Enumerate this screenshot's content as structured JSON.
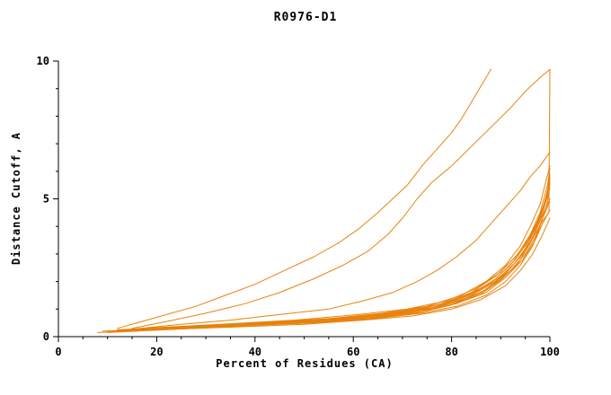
{
  "chart_data": {
    "type": "line",
    "title": "R0976-D1",
    "xlabel": "Percent of Residues (CA)",
    "ylabel": "Distance Cutoff, A",
    "xlim": [
      0,
      100
    ],
    "ylim": [
      0,
      10
    ],
    "x_major_ticks": [
      0,
      20,
      40,
      60,
      80,
      100
    ],
    "x_minor_step": 5,
    "y_major_ticks": [
      0,
      5,
      10
    ],
    "y_minor_step": 1,
    "grid": false,
    "legend": "none",
    "background_color": "#ffffff",
    "axis_color": "#000000",
    "line_color": "#e8820c",
    "series": [
      [
        [
          12,
          0.3
        ],
        [
          16,
          0.5
        ],
        [
          22,
          0.8
        ],
        [
          28,
          1.1
        ],
        [
          34,
          1.5
        ],
        [
          40,
          1.9
        ],
        [
          46,
          2.4
        ],
        [
          52,
          2.9
        ],
        [
          57,
          3.4
        ],
        [
          61,
          3.9
        ],
        [
          65,
          4.5
        ],
        [
          68,
          5.0
        ],
        [
          71,
          5.5
        ],
        [
          74,
          6.2
        ],
        [
          77,
          6.8
        ],
        [
          80,
          7.4
        ],
        [
          82,
          7.9
        ],
        [
          84,
          8.5
        ],
        [
          86,
          9.1
        ],
        [
          88,
          9.7
        ]
      ],
      [
        [
          15,
          0.3
        ],
        [
          22,
          0.55
        ],
        [
          30,
          0.85
        ],
        [
          38,
          1.2
        ],
        [
          45,
          1.6
        ],
        [
          52,
          2.1
        ],
        [
          58,
          2.6
        ],
        [
          63,
          3.1
        ],
        [
          67,
          3.7
        ],
        [
          70,
          4.3
        ],
        [
          73,
          5.0
        ],
        [
          76,
          5.6
        ],
        [
          80,
          6.2
        ],
        [
          84,
          6.9
        ],
        [
          88,
          7.6
        ],
        [
          92,
          8.3
        ],
        [
          95,
          8.9
        ],
        [
          98,
          9.4
        ],
        [
          100,
          9.7
        ]
      ],
      [
        [
          14,
          0.25
        ],
        [
          25,
          0.45
        ],
        [
          35,
          0.6
        ],
        [
          45,
          0.8
        ],
        [
          55,
          1.0
        ],
        [
          62,
          1.3
        ],
        [
          68,
          1.6
        ],
        [
          73,
          2.0
        ],
        [
          77,
          2.4
        ],
        [
          81,
          2.9
        ],
        [
          85,
          3.5
        ],
        [
          88,
          4.1
        ],
        [
          91,
          4.7
        ],
        [
          94,
          5.3
        ],
        [
          96,
          5.8
        ],
        [
          98,
          6.2
        ],
        [
          100,
          6.7
        ]
      ],
      [
        [
          9,
          0.2
        ],
        [
          20,
          0.3
        ],
        [
          35,
          0.45
        ],
        [
          50,
          0.55
        ],
        [
          62,
          0.7
        ],
        [
          72,
          0.9
        ],
        [
          80,
          1.2
        ],
        [
          86,
          1.6
        ],
        [
          90,
          2.1
        ],
        [
          93,
          2.7
        ],
        [
          95,
          3.2
        ],
        [
          97,
          3.9
        ],
        [
          98.5,
          4.6
        ],
        [
          99.5,
          5.3
        ],
        [
          100,
          5.9
        ]
      ],
      [
        [
          12,
          0.25
        ],
        [
          25,
          0.35
        ],
        [
          40,
          0.5
        ],
        [
          55,
          0.65
        ],
        [
          66,
          0.85
        ],
        [
          75,
          1.1
        ],
        [
          82,
          1.5
        ],
        [
          87,
          2.0
        ],
        [
          91,
          2.6
        ],
        [
          94,
          3.3
        ],
        [
          96,
          4.0
        ],
        [
          98,
          4.8
        ],
        [
          99,
          5.5
        ],
        [
          100,
          6.2
        ]
      ],
      [
        [
          15,
          0.2
        ],
        [
          30,
          0.35
        ],
        [
          45,
          0.5
        ],
        [
          58,
          0.65
        ],
        [
          68,
          0.8
        ],
        [
          76,
          1.05
        ],
        [
          83,
          1.4
        ],
        [
          88,
          1.9
        ],
        [
          92,
          2.5
        ],
        [
          95,
          3.1
        ],
        [
          97,
          3.8
        ],
        [
          98.5,
          4.4
        ],
        [
          100,
          5.0
        ]
      ],
      [
        [
          10,
          0.15
        ],
        [
          22,
          0.25
        ],
        [
          38,
          0.4
        ],
        [
          52,
          0.5
        ],
        [
          64,
          0.65
        ],
        [
          74,
          0.85
        ],
        [
          81,
          1.1
        ],
        [
          87,
          1.5
        ],
        [
          91,
          2.0
        ],
        [
          94,
          2.6
        ],
        [
          96.5,
          3.3
        ],
        [
          98,
          4.0
        ],
        [
          99.5,
          4.9
        ],
        [
          100,
          5.6
        ]
      ],
      [
        [
          18,
          0.25
        ],
        [
          32,
          0.4
        ],
        [
          47,
          0.55
        ],
        [
          60,
          0.7
        ],
        [
          70,
          0.9
        ],
        [
          78,
          1.2
        ],
        [
          84,
          1.6
        ],
        [
          89,
          2.2
        ],
        [
          93,
          2.9
        ],
        [
          95.5,
          3.5
        ],
        [
          97.5,
          4.2
        ],
        [
          99,
          4.9
        ],
        [
          100,
          5.6
        ]
      ],
      [
        [
          8,
          0.15
        ],
        [
          20,
          0.25
        ],
        [
          36,
          0.4
        ],
        [
          50,
          0.5
        ],
        [
          63,
          0.65
        ],
        [
          73,
          0.85
        ],
        [
          80,
          1.15
        ],
        [
          86,
          1.55
        ],
        [
          90,
          2.05
        ],
        [
          93.5,
          2.65
        ],
        [
          96,
          3.4
        ],
        [
          98,
          4.2
        ],
        [
          99.5,
          5.1
        ],
        [
          100,
          5.8
        ]
      ],
      [
        [
          14,
          0.2
        ],
        [
          28,
          0.3
        ],
        [
          44,
          0.45
        ],
        [
          57,
          0.6
        ],
        [
          67,
          0.75
        ],
        [
          76,
          1.0
        ],
        [
          83,
          1.35
        ],
        [
          88,
          1.8
        ],
        [
          92,
          2.4
        ],
        [
          95,
          3.0
        ],
        [
          97,
          3.6
        ],
        [
          98.5,
          4.3
        ],
        [
          100,
          4.9
        ]
      ],
      [
        [
          11,
          0.2
        ],
        [
          24,
          0.3
        ],
        [
          40,
          0.45
        ],
        [
          54,
          0.6
        ],
        [
          65,
          0.75
        ],
        [
          74,
          0.95
        ],
        [
          81,
          1.25
        ],
        [
          87,
          1.7
        ],
        [
          91,
          2.3
        ],
        [
          94,
          2.9
        ],
        [
          96.5,
          3.6
        ],
        [
          98.5,
          4.5
        ],
        [
          100,
          5.4
        ]
      ],
      [
        [
          16,
          0.25
        ],
        [
          30,
          0.4
        ],
        [
          46,
          0.55
        ],
        [
          59,
          0.7
        ],
        [
          69,
          0.9
        ],
        [
          77,
          1.15
        ],
        [
          84,
          1.55
        ],
        [
          89,
          2.1
        ],
        [
          93,
          2.8
        ],
        [
          96,
          3.6
        ],
        [
          98,
          4.4
        ],
        [
          99.5,
          5.2
        ],
        [
          100,
          5.7
        ]
      ],
      [
        [
          13,
          0.2
        ],
        [
          27,
          0.3
        ],
        [
          42,
          0.45
        ],
        [
          56,
          0.6
        ],
        [
          66,
          0.8
        ],
        [
          75,
          1.05
        ],
        [
          82,
          1.4
        ],
        [
          88,
          1.95
        ],
        [
          92,
          2.6
        ],
        [
          95,
          3.3
        ],
        [
          97.5,
          4.1
        ],
        [
          99,
          4.9
        ],
        [
          100,
          5.5
        ]
      ],
      [
        [
          17,
          0.3
        ],
        [
          33,
          0.45
        ],
        [
          48,
          0.6
        ],
        [
          61,
          0.8
        ],
        [
          71,
          1.0
        ],
        [
          79,
          1.3
        ],
        [
          85,
          1.75
        ],
        [
          90,
          2.35
        ],
        [
          93.5,
          3.0
        ],
        [
          96,
          3.7
        ],
        [
          98,
          4.5
        ],
        [
          99.5,
          5.5
        ],
        [
          100,
          6.1
        ]
      ],
      [
        [
          10,
          0.2
        ],
        [
          23,
          0.3
        ],
        [
          39,
          0.45
        ],
        [
          53,
          0.55
        ],
        [
          64,
          0.7
        ],
        [
          74,
          0.9
        ],
        [
          81,
          1.2
        ],
        [
          87,
          1.6
        ],
        [
          91,
          2.15
        ],
        [
          94.5,
          2.8
        ],
        [
          97,
          3.5
        ],
        [
          98.5,
          4.1
        ],
        [
          100,
          4.6
        ]
      ],
      [
        [
          20,
          0.25
        ],
        [
          36,
          0.35
        ],
        [
          50,
          0.45
        ],
        [
          62,
          0.6
        ],
        [
          72,
          0.75
        ],
        [
          80,
          1.0
        ],
        [
          86,
          1.35
        ],
        [
          91,
          1.85
        ],
        [
          94,
          2.4
        ],
        [
          96.5,
          3.0
        ],
        [
          98.5,
          3.7
        ],
        [
          100,
          4.3
        ]
      ],
      [
        [
          12,
          0.2
        ],
        [
          26,
          0.3
        ],
        [
          41,
          0.45
        ],
        [
          55,
          0.6
        ],
        [
          67,
          0.8
        ],
        [
          76,
          1.05
        ],
        [
          83,
          1.45
        ],
        [
          89,
          2.0
        ],
        [
          93,
          2.7
        ],
        [
          96,
          3.4
        ],
        [
          98.5,
          4.2
        ],
        [
          99.8,
          4.5
        ],
        [
          100,
          9.7
        ]
      ]
    ]
  }
}
